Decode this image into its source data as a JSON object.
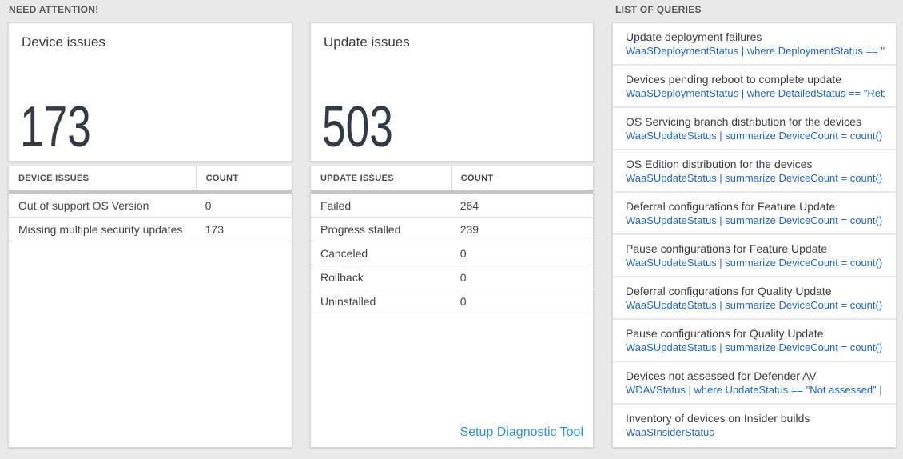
{
  "colors": {
    "page_background": "#e9e9e9",
    "big_number": "#323a45",
    "query_blue": "#2268c3",
    "footer_link_blue": "#2e95d4"
  },
  "sections": {
    "need_attention": {
      "title": "NEED ATTENTION!",
      "device_card": {
        "title": "Device issues",
        "count": "173"
      },
      "device_table": {
        "headers": {
          "label": "DEVICE ISSUES",
          "count": "COUNT"
        },
        "rows": [
          {
            "label": "Out of support OS Version",
            "count": "0"
          },
          {
            "label": "Missing multiple security updates",
            "count": "173"
          }
        ]
      },
      "update_card": {
        "title": "Update issues",
        "count": "503"
      },
      "update_table": {
        "headers": {
          "label": "UPDATE ISSUES",
          "count": "COUNT"
        },
        "rows": [
          {
            "label": "Failed",
            "count": "264"
          },
          {
            "label": "Progress stalled",
            "count": "239"
          },
          {
            "label": "Canceled",
            "count": "0"
          },
          {
            "label": "Rollback",
            "count": "0"
          },
          {
            "label": "Uninstalled",
            "count": "0"
          }
        ],
        "footer_link": "Setup Diagnostic Tool"
      }
    },
    "queries": {
      "title": "LIST OF QUERIES",
      "items": [
        {
          "title": "Update deployment failures",
          "query": "WaaSDeploymentStatus | where DeploymentStatus == \"Failed\" |..."
        },
        {
          "title": "Devices pending reboot to complete update",
          "query": "WaaSDeploymentStatus | where DetailedStatus == \"Reboot pend..."
        },
        {
          "title": "OS Servicing branch distribution for the devices",
          "query": "WaaSUpdateStatus | summarize DeviceCount = count() by OSSer..."
        },
        {
          "title": "OS Edition distribution for the devices",
          "query": "WaaSUpdateStatus | summarize DeviceCount = count() by OSEdit..."
        },
        {
          "title": "Deferral configurations for Feature Update",
          "query": "WaaSUpdateStatus | summarize DeviceCount = count() by Featur..."
        },
        {
          "title": "Pause configurations for Feature Update",
          "query": "WaaSUpdateStatus | summarize DeviceCount = count() by Featur..."
        },
        {
          "title": "Deferral configurations for Quality Update",
          "query": "WaaSUpdateStatus | summarize DeviceCount = count() by Qualit..."
        },
        {
          "title": "Pause configurations for Quality Update",
          "query": "WaaSUpdateStatus | summarize DeviceCount = count() by Qualit..."
        },
        {
          "title": "Devices not assessed for Defender AV",
          "query": "WDAVStatus | where UpdateStatus == \"Not assessed\" | render ta..."
        },
        {
          "title": "Inventory of devices on Insider builds",
          "query": "WaaSInsiderStatus"
        }
      ]
    }
  }
}
